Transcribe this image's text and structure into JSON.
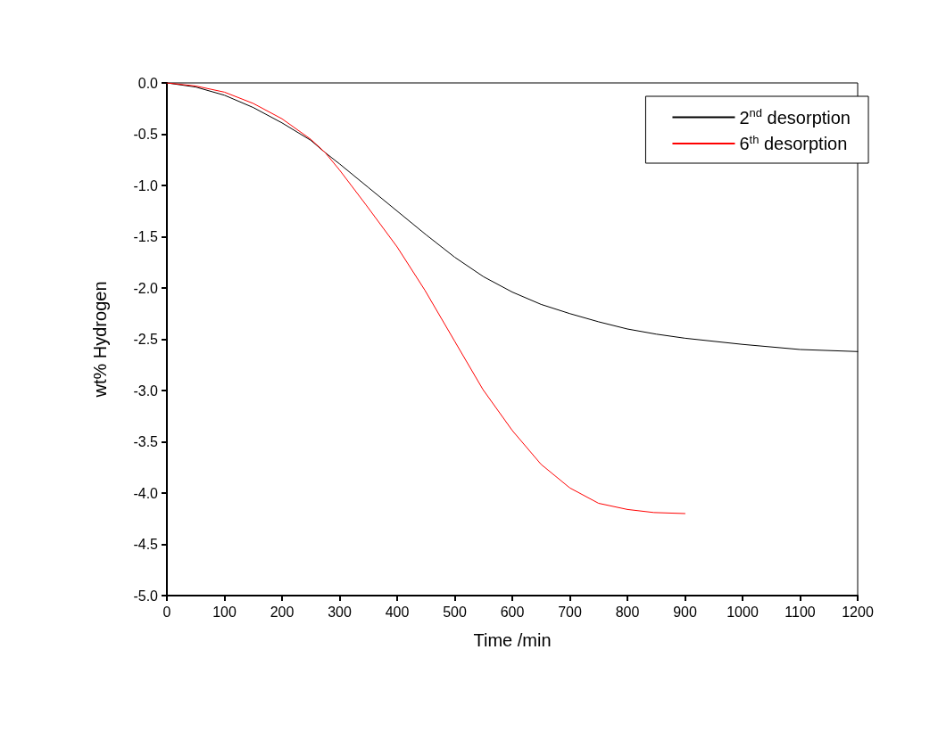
{
  "chart_data": {
    "type": "line",
    "xlabel": "Time /min",
    "ylabel": "wt% Hydrogen",
    "xlim": [
      0,
      1200
    ],
    "ylim": [
      -5,
      0
    ],
    "xticks": [
      0,
      100,
      200,
      300,
      400,
      500,
      600,
      700,
      800,
      900,
      1000,
      1100,
      1200
    ],
    "yticks": [
      {
        "value": -5,
        "label": "-5.0"
      },
      {
        "value": -4.5,
        "label": "-4.5"
      },
      {
        "value": -4,
        "label": "-4.0"
      },
      {
        "value": -3.5,
        "label": "-3.5"
      },
      {
        "value": -3,
        "label": "-3.0"
      },
      {
        "value": -2.5,
        "label": "-2.5"
      },
      {
        "value": -2,
        "label": "-2.0"
      },
      {
        "value": -1.5,
        "label": "-1.5"
      },
      {
        "value": -1,
        "label": "-1.0"
      },
      {
        "value": -0.5,
        "label": "-0.5"
      },
      {
        "value": 0,
        "label": "0.0"
      }
    ],
    "legend": "top right",
    "marker": "none",
    "line_style": "solid",
    "grid": false,
    "series": [
      {
        "name": "2$^{nd}$ desorption",
        "color": "#000000",
        "x": [
          0,
          50,
          100,
          150,
          200,
          250,
          275,
          300,
          350,
          400,
          450,
          500,
          550,
          600,
          650,
          700,
          750,
          800,
          850,
          900,
          1000,
          1100,
          1200
        ],
        "values": [
          0,
          -0.04,
          -0.12,
          -0.24,
          -0.39,
          -0.56,
          -0.68,
          -0.79,
          -1.02,
          -1.25,
          -1.48,
          -1.7,
          -1.89,
          -2.04,
          -2.16,
          -2.25,
          -2.33,
          -2.4,
          -2.45,
          -2.49,
          -2.55,
          -2.6,
          -2.62
        ]
      },
      {
        "name": "6$^{th}$ desorption",
        "color": "#ff0000",
        "x": [
          0,
          50,
          100,
          150,
          200,
          250,
          275,
          300,
          346,
          400,
          448,
          500,
          549,
          600,
          650,
          700,
          750,
          800,
          846,
          900
        ],
        "values": [
          0,
          -0.03,
          -0.09,
          -0.2,
          -0.35,
          -0.55,
          -0.68,
          -0.85,
          -1.19,
          -1.6,
          -2.02,
          -2.52,
          -2.99,
          -3.39,
          -3.72,
          -3.95,
          -4.1,
          -4.16,
          -4.19,
          -4.2
        ]
      }
    ]
  }
}
